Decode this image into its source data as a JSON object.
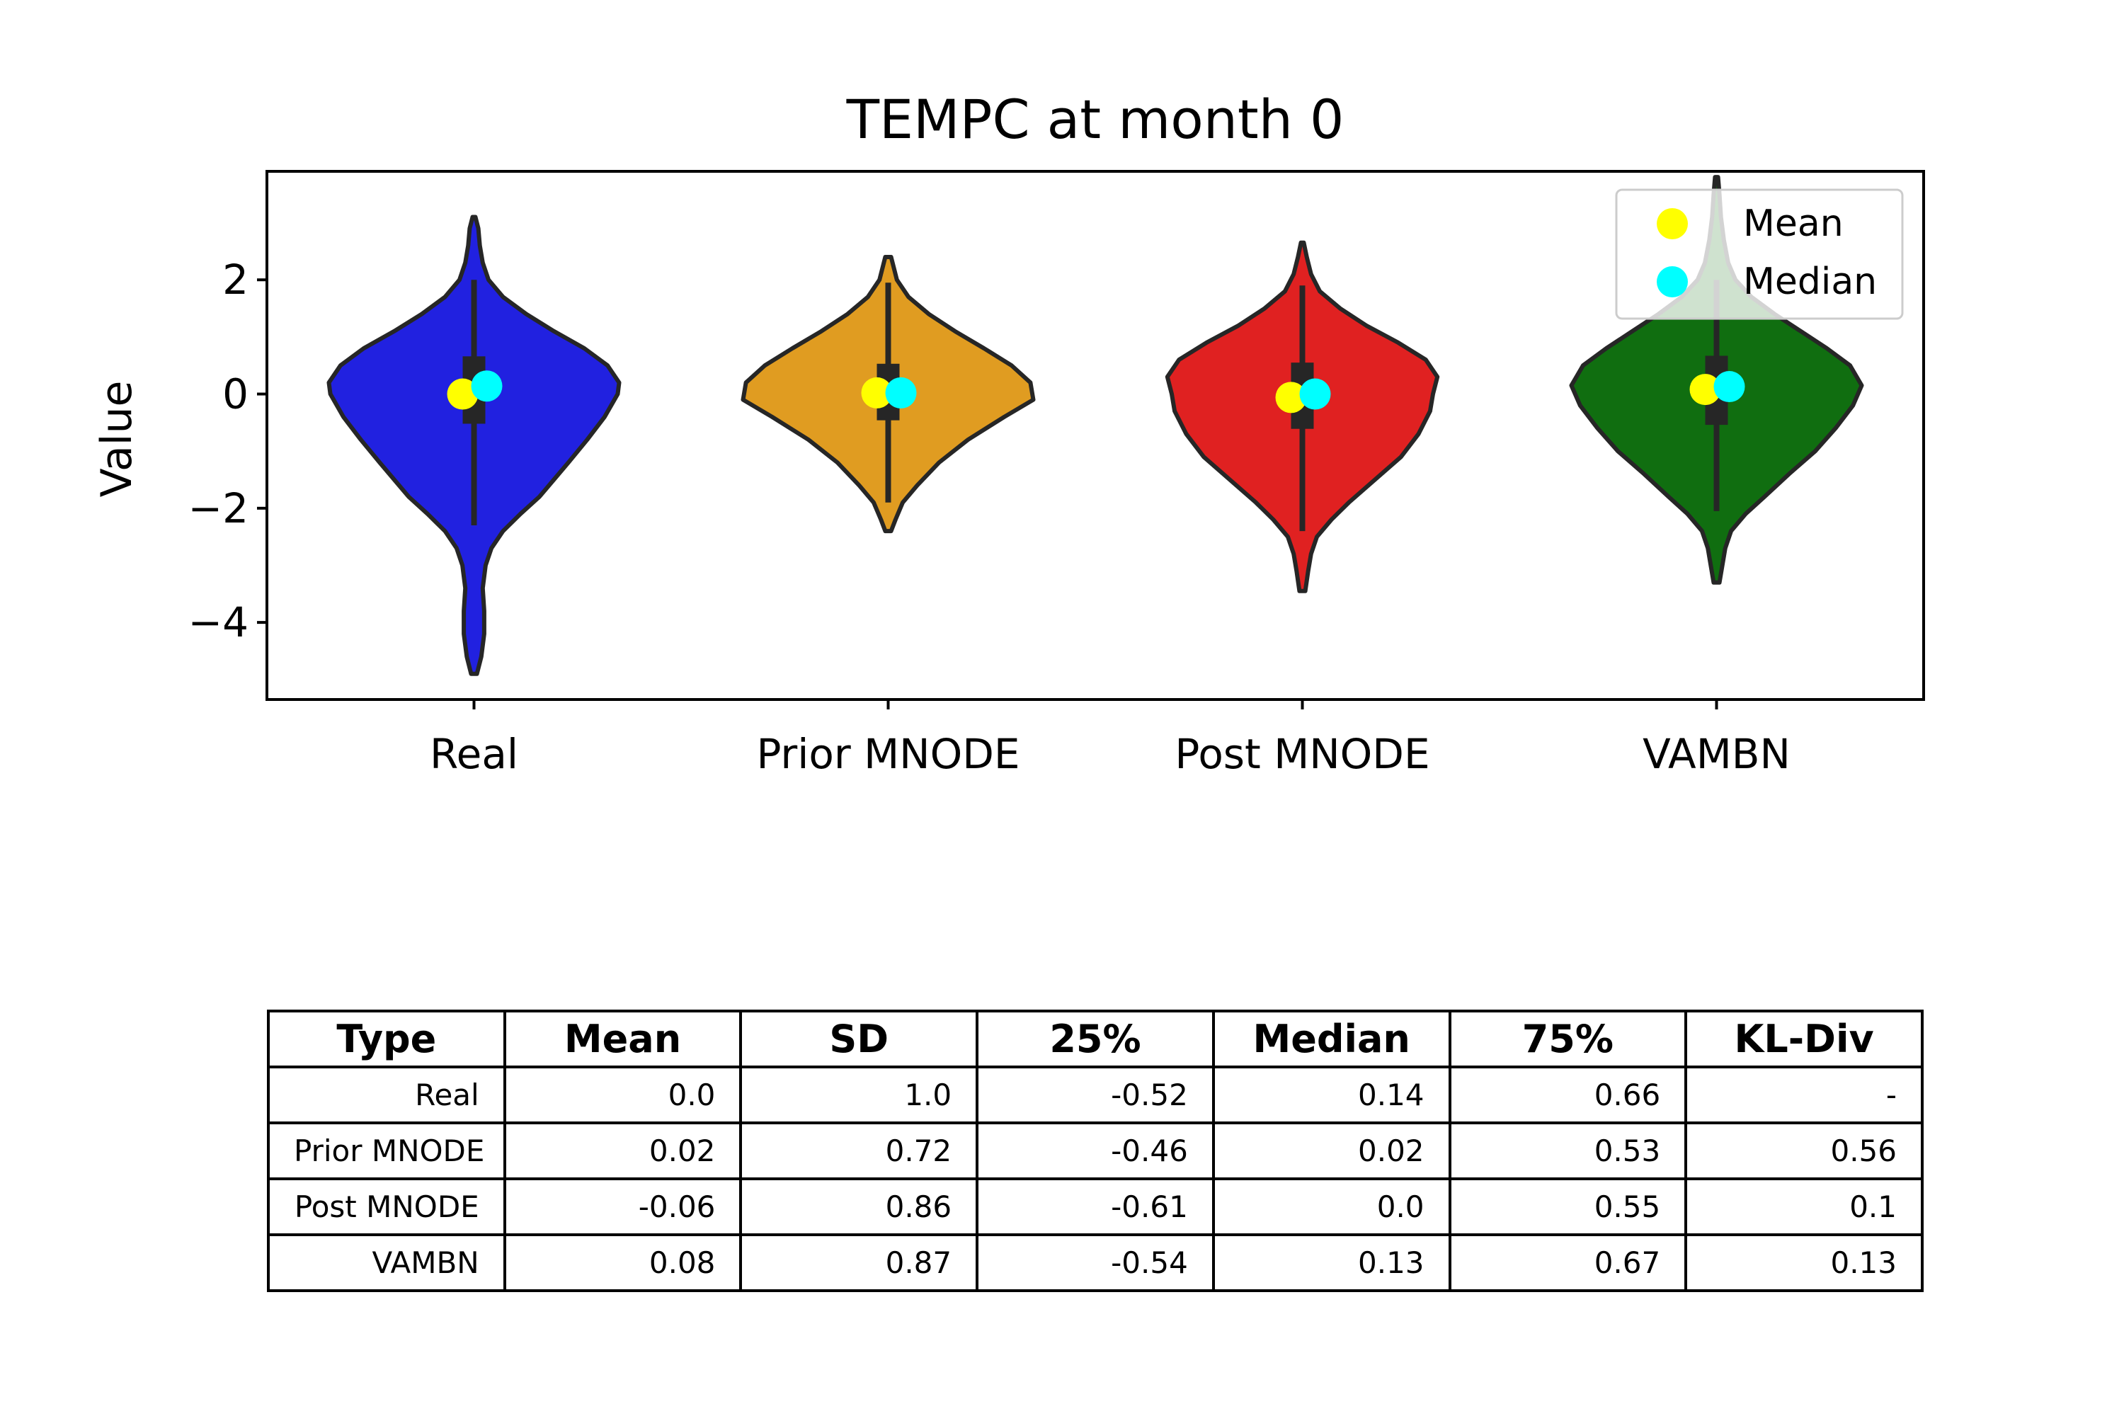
{
  "chart_data": {
    "type": "violin",
    "title": "TEMPC at month 0",
    "xlabel": "",
    "ylabel": "Value",
    "ylim": [
      -5.35,
      3.9
    ],
    "yticks": [
      2,
      0,
      -2,
      -4
    ],
    "ytick_labels": [
      "2",
      "0",
      "−2",
      "−4"
    ],
    "categories": [
      "Real",
      "Prior MNODE",
      "Post MNODE",
      "VAMBN"
    ],
    "colors": [
      "#2121e0",
      "#e09c21",
      "#e02121",
      "#106e10"
    ],
    "legend": {
      "position": "top-right",
      "entries": [
        {
          "label": "Mean",
          "color": "#ffff00"
        },
        {
          "label": "Median",
          "color": "#00ffff"
        }
      ]
    },
    "series": [
      {
        "name": "Real",
        "mean": 0.0,
        "median": 0.14,
        "q1": -0.52,
        "q3": 0.66,
        "whisker_low": -2.3,
        "whisker_high": 2.0,
        "profile": [
          [
            -4.9,
            0.02
          ],
          [
            -4.6,
            0.05
          ],
          [
            -4.2,
            0.07
          ],
          [
            -3.8,
            0.07
          ],
          [
            -3.4,
            0.06
          ],
          [
            -3.0,
            0.08
          ],
          [
            -2.7,
            0.12
          ],
          [
            -2.4,
            0.2
          ],
          [
            -2.1,
            0.32
          ],
          [
            -1.8,
            0.45
          ],
          [
            -1.5,
            0.55
          ],
          [
            -1.2,
            0.65
          ],
          [
            -0.8,
            0.78
          ],
          [
            -0.4,
            0.9
          ],
          [
            0.0,
            0.99
          ],
          [
            0.2,
            1.0
          ],
          [
            0.5,
            0.92
          ],
          [
            0.8,
            0.76
          ],
          [
            1.1,
            0.55
          ],
          [
            1.4,
            0.36
          ],
          [
            1.7,
            0.2
          ],
          [
            2.0,
            0.1
          ],
          [
            2.3,
            0.06
          ],
          [
            2.6,
            0.04
          ],
          [
            2.9,
            0.03
          ],
          [
            3.1,
            0.01
          ]
        ]
      },
      {
        "name": "Prior MNODE",
        "mean": 0.02,
        "median": 0.02,
        "q1": -0.46,
        "q3": 0.53,
        "whisker_low": -1.9,
        "whisker_high": 1.95,
        "profile": [
          [
            -2.4,
            0.02
          ],
          [
            -2.2,
            0.05
          ],
          [
            -1.9,
            0.1
          ],
          [
            -1.6,
            0.2
          ],
          [
            -1.2,
            0.35
          ],
          [
            -0.8,
            0.55
          ],
          [
            -0.4,
            0.8
          ],
          [
            -0.1,
            1.0
          ],
          [
            0.2,
            0.98
          ],
          [
            0.5,
            0.85
          ],
          [
            0.8,
            0.66
          ],
          [
            1.1,
            0.46
          ],
          [
            1.4,
            0.28
          ],
          [
            1.7,
            0.14
          ],
          [
            2.0,
            0.06
          ],
          [
            2.2,
            0.04
          ],
          [
            2.4,
            0.02
          ]
        ]
      },
      {
        "name": "Post MNODE",
        "mean": -0.06,
        "median": 0.0,
        "q1": -0.61,
        "q3": 0.55,
        "whisker_low": -2.4,
        "whisker_high": 1.9,
        "profile": [
          [
            -3.45,
            0.02
          ],
          [
            -3.1,
            0.04
          ],
          [
            -2.8,
            0.06
          ],
          [
            -2.5,
            0.1
          ],
          [
            -2.2,
            0.2
          ],
          [
            -1.9,
            0.32
          ],
          [
            -1.5,
            0.5
          ],
          [
            -1.1,
            0.68
          ],
          [
            -0.7,
            0.8
          ],
          [
            -0.3,
            0.88
          ],
          [
            0.0,
            0.9
          ],
          [
            0.3,
            0.93
          ],
          [
            0.6,
            0.85
          ],
          [
            0.9,
            0.66
          ],
          [
            1.2,
            0.44
          ],
          [
            1.5,
            0.26
          ],
          [
            1.8,
            0.12
          ],
          [
            2.1,
            0.06
          ],
          [
            2.4,
            0.03
          ],
          [
            2.65,
            0.01
          ]
        ]
      },
      {
        "name": "VAMBN",
        "mean": 0.08,
        "median": 0.13,
        "q1": -0.54,
        "q3": 0.67,
        "whisker_low": -2.05,
        "whisker_high": 2.0,
        "profile": [
          [
            -3.3,
            0.02
          ],
          [
            -3.0,
            0.04
          ],
          [
            -2.7,
            0.06
          ],
          [
            -2.4,
            0.1
          ],
          [
            -2.1,
            0.2
          ],
          [
            -1.8,
            0.33
          ],
          [
            -1.4,
            0.5
          ],
          [
            -1.0,
            0.68
          ],
          [
            -0.6,
            0.82
          ],
          [
            -0.2,
            0.94
          ],
          [
            0.15,
            1.0
          ],
          [
            0.5,
            0.92
          ],
          [
            0.8,
            0.76
          ],
          [
            1.1,
            0.58
          ],
          [
            1.4,
            0.4
          ],
          [
            1.7,
            0.24
          ],
          [
            2.0,
            0.13
          ],
          [
            2.3,
            0.08
          ],
          [
            2.7,
            0.05
          ],
          [
            3.1,
            0.03
          ],
          [
            3.5,
            0.02
          ],
          [
            3.8,
            0.01
          ]
        ]
      }
    ]
  },
  "table": {
    "headers": [
      "Type",
      "Mean",
      "SD",
      "25%",
      "Median",
      "75%",
      "KL-Div"
    ],
    "rows": [
      [
        "Real",
        "0.0",
        "1.0",
        "-0.52",
        "0.14",
        "0.66",
        "-"
      ],
      [
        "Prior MNODE",
        "0.02",
        "0.72",
        "-0.46",
        "0.02",
        "0.53",
        "0.56"
      ],
      [
        "Post MNODE",
        "-0.06",
        "0.86",
        "-0.61",
        "0.0",
        "0.55",
        "0.1"
      ],
      [
        "VAMBN",
        "0.08",
        "0.87",
        "-0.54",
        "0.13",
        "0.67",
        "0.13"
      ]
    ]
  }
}
